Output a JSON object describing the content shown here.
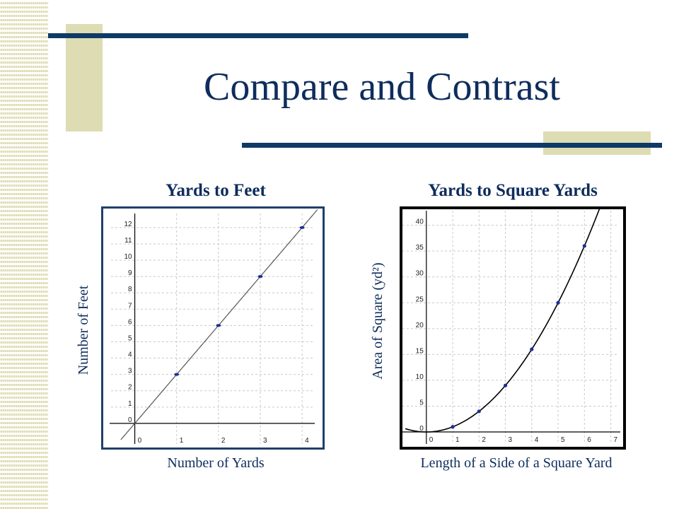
{
  "slide": {
    "title": "Compare and Contrast",
    "colors": {
      "title": "#0e2d5c",
      "bar": "#0e3a66",
      "accent": "#dedcb3"
    }
  },
  "chart_data": [
    {
      "type": "line",
      "title": "Yards to Feet",
      "xlabel": "Number of Yards",
      "ylabel": "Number of Feet",
      "xlim": [
        -0.5,
        4.2
      ],
      "ylim": [
        -1,
        12.6
      ],
      "xticks": [
        0,
        1,
        2,
        3,
        4
      ],
      "yticks": [
        0,
        1,
        2,
        3,
        4,
        5,
        6,
        7,
        8,
        9,
        10,
        11,
        12
      ],
      "grid": true,
      "series": [
        {
          "x": [
            1,
            2,
            3,
            4
          ],
          "y": [
            3,
            6,
            9,
            12
          ],
          "line": "y = 3x"
        }
      ]
    },
    {
      "type": "line",
      "title": "Yards to Square Yards",
      "xlabel": "Length of a Side of a Square Yard",
      "ylabel": "Area of Square (yd²)",
      "xlim": [
        -0.8,
        7.2
      ],
      "ylim": [
        -1.5,
        42
      ],
      "xticks": [
        0,
        1,
        2,
        3,
        4,
        5,
        6,
        7
      ],
      "yticks": [
        0,
        5,
        10,
        15,
        20,
        25,
        30,
        35,
        40
      ],
      "grid": true,
      "series": [
        {
          "x": [
            1,
            2,
            3,
            4,
            5,
            6
          ],
          "y": [
            1,
            4,
            9,
            16,
            25,
            36
          ],
          "line": "y = x^2"
        }
      ]
    }
  ]
}
